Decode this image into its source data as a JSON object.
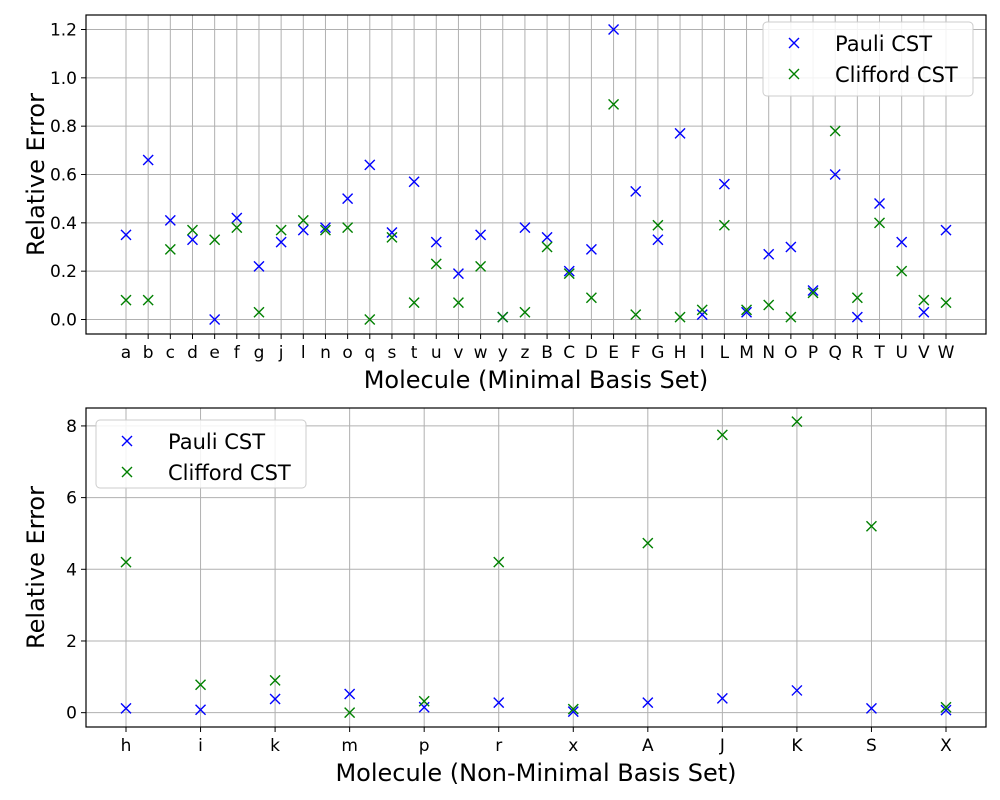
{
  "colors": {
    "pauli": "#0000ff",
    "clifford": "#008000",
    "grid": "#b0b0b0",
    "axes": "#000000"
  },
  "chart_data": [
    {
      "type": "scatter",
      "marker": "x",
      "xlabel": "Molecule (Minimal Basis Set)",
      "ylabel": "Relative Error",
      "ylim": [
        -0.06,
        1.26
      ],
      "yticks": [
        0.0,
        0.2,
        0.4,
        0.6,
        0.8,
        1.0,
        1.2
      ],
      "ytick_labels": [
        "0.0",
        "0.2",
        "0.4",
        "0.6",
        "0.8",
        "1.0",
        "1.2"
      ],
      "grid": true,
      "legend_position": "top-right",
      "categories": [
        "a",
        "b",
        "c",
        "d",
        "e",
        "f",
        "g",
        "j",
        "l",
        "n",
        "o",
        "q",
        "s",
        "t",
        "u",
        "v",
        "w",
        "y",
        "z",
        "B",
        "C",
        "D",
        "E",
        "F",
        "G",
        "H",
        "I",
        "L",
        "M",
        "N",
        "O",
        "P",
        "Q",
        "R",
        "T",
        "U",
        "V",
        "W"
      ],
      "series": [
        {
          "name": "Pauli CST",
          "color": "#0000ff",
          "values": [
            0.35,
            0.66,
            0.41,
            0.33,
            0.0,
            0.42,
            0.22,
            0.32,
            0.37,
            0.38,
            0.5,
            0.64,
            0.36,
            0.57,
            0.32,
            0.19,
            0.35,
            0.01,
            0.38,
            0.34,
            0.2,
            0.29,
            1.2,
            0.53,
            0.33,
            0.77,
            0.02,
            0.56,
            0.03,
            0.27,
            0.3,
            0.12,
            0.6,
            0.01,
            0.48,
            0.32,
            0.03,
            0.37
          ]
        },
        {
          "name": "Clifford CST",
          "color": "#008000",
          "values": [
            0.08,
            0.08,
            0.29,
            0.37,
            0.33,
            0.38,
            0.03,
            0.37,
            0.41,
            0.37,
            0.38,
            0.0,
            0.34,
            0.07,
            0.23,
            0.07,
            0.22,
            0.01,
            0.03,
            0.3,
            0.19,
            0.09,
            0.89,
            0.02,
            0.39,
            0.01,
            0.04,
            0.39,
            0.04,
            0.06,
            0.01,
            0.11,
            0.78,
            0.09,
            0.4,
            0.2,
            0.08,
            0.07
          ]
        }
      ]
    },
    {
      "type": "scatter",
      "marker": "x",
      "xlabel": "Molecule (Non-Minimal Basis Set)",
      "ylabel": "Relative Error",
      "ylim": [
        -0.4,
        8.5
      ],
      "yticks": [
        0,
        2,
        4,
        6,
        8
      ],
      "ytick_labels": [
        "0",
        "2",
        "4",
        "6",
        "8"
      ],
      "grid": true,
      "legend_position": "top-left",
      "categories": [
        "h",
        "i",
        "k",
        "m",
        "p",
        "r",
        "x",
        "A",
        "J",
        "K",
        "S",
        "X"
      ],
      "series": [
        {
          "name": "Pauli CST",
          "color": "#0000ff",
          "values": [
            0.12,
            0.08,
            0.38,
            0.52,
            0.15,
            0.28,
            0.03,
            0.28,
            0.4,
            0.62,
            0.12,
            0.07
          ]
        },
        {
          "name": "Clifford CST",
          "color": "#008000",
          "values": [
            4.2,
            0.78,
            0.9,
            0.0,
            0.32,
            4.2,
            0.1,
            4.73,
            7.75,
            8.12,
            5.2,
            0.15
          ]
        }
      ]
    }
  ]
}
